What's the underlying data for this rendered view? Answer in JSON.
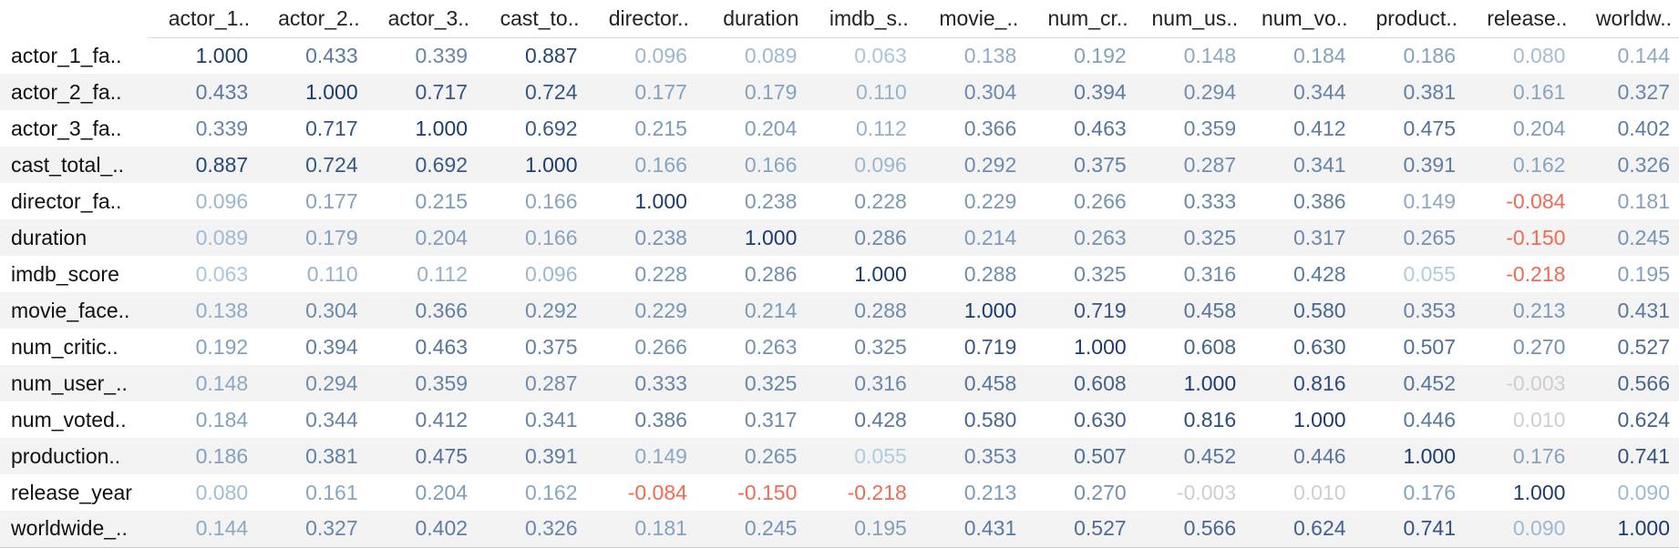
{
  "columns": [
    "actor_1..",
    "actor_2..",
    "actor_3..",
    "cast_to..",
    "director..",
    "duration",
    "imdb_s..",
    "movie_..",
    "num_cr..",
    "num_us..",
    "num_vo..",
    "product..",
    "release..",
    "worldw.."
  ],
  "rows": [
    {
      "label": "actor_1_fa..",
      "cells": [
        "1.000",
        "0.433",
        "0.339",
        "0.887",
        "0.096",
        "0.089",
        "0.063",
        "0.138",
        "0.192",
        "0.148",
        "0.184",
        "0.186",
        "0.080",
        "0.144"
      ]
    },
    {
      "label": "actor_2_fa..",
      "cells": [
        "0.433",
        "1.000",
        "0.717",
        "0.724",
        "0.177",
        "0.179",
        "0.110",
        "0.304",
        "0.394",
        "0.294",
        "0.344",
        "0.381",
        "0.161",
        "0.327"
      ]
    },
    {
      "label": "actor_3_fa..",
      "cells": [
        "0.339",
        "0.717",
        "1.000",
        "0.692",
        "0.215",
        "0.204",
        "0.112",
        "0.366",
        "0.463",
        "0.359",
        "0.412",
        "0.475",
        "0.204",
        "0.402"
      ]
    },
    {
      "label": "cast_total_..",
      "cells": [
        "0.887",
        "0.724",
        "0.692",
        "1.000",
        "0.166",
        "0.166",
        "0.096",
        "0.292",
        "0.375",
        "0.287",
        "0.341",
        "0.391",
        "0.162",
        "0.326"
      ]
    },
    {
      "label": "director_fa..",
      "cells": [
        "0.096",
        "0.177",
        "0.215",
        "0.166",
        "1.000",
        "0.238",
        "0.228",
        "0.229",
        "0.266",
        "0.333",
        "0.386",
        "0.149",
        "-0.084",
        "0.181"
      ]
    },
    {
      "label": "duration",
      "cells": [
        "0.089",
        "0.179",
        "0.204",
        "0.166",
        "0.238",
        "1.000",
        "0.286",
        "0.214",
        "0.263",
        "0.325",
        "0.317",
        "0.265",
        "-0.150",
        "0.245"
      ]
    },
    {
      "label": "imdb_score",
      "cells": [
        "0.063",
        "0.110",
        "0.112",
        "0.096",
        "0.228",
        "0.286",
        "1.000",
        "0.288",
        "0.325",
        "0.316",
        "0.428",
        "0.055",
        "-0.218",
        "0.195"
      ]
    },
    {
      "label": "movie_face..",
      "cells": [
        "0.138",
        "0.304",
        "0.366",
        "0.292",
        "0.229",
        "0.214",
        "0.288",
        "1.000",
        "0.719",
        "0.458",
        "0.580",
        "0.353",
        "0.213",
        "0.431"
      ]
    },
    {
      "label": "num_critic..",
      "cells": [
        "0.192",
        "0.394",
        "0.463",
        "0.375",
        "0.266",
        "0.263",
        "0.325",
        "0.719",
        "1.000",
        "0.608",
        "0.630",
        "0.507",
        "0.270",
        "0.527"
      ]
    },
    {
      "label": "num_user_..",
      "cells": [
        "0.148",
        "0.294",
        "0.359",
        "0.287",
        "0.333",
        "0.325",
        "0.316",
        "0.458",
        "0.608",
        "1.000",
        "0.816",
        "0.452",
        "-0.003",
        "0.566"
      ]
    },
    {
      "label": "num_voted..",
      "cells": [
        "0.184",
        "0.344",
        "0.412",
        "0.341",
        "0.386",
        "0.317",
        "0.428",
        "0.580",
        "0.630",
        "0.816",
        "1.000",
        "0.446",
        "0.010",
        "0.624"
      ]
    },
    {
      "label": "production..",
      "cells": [
        "0.186",
        "0.381",
        "0.475",
        "0.391",
        "0.149",
        "0.265",
        "0.055",
        "0.353",
        "0.507",
        "0.452",
        "0.446",
        "1.000",
        "0.176",
        "0.741"
      ]
    },
    {
      "label": "release_year",
      "cells": [
        "0.080",
        "0.161",
        "0.204",
        "0.162",
        "-0.084",
        "-0.150",
        "-0.218",
        "0.213",
        "0.270",
        "-0.003",
        "0.010",
        "0.176",
        "1.000",
        "0.090"
      ]
    },
    {
      "label": "worldwide_..",
      "cells": [
        "0.144",
        "0.327",
        "0.402",
        "0.326",
        "0.181",
        "0.245",
        "0.195",
        "0.431",
        "0.527",
        "0.566",
        "0.624",
        "0.741",
        "0.090",
        "1.000"
      ]
    }
  ],
  "colors": {
    "positive_high": "#1c3c6e",
    "positive_low": "#b9d4e6",
    "negative": "#f06a55",
    "neutral_near_zero": "#d4cccc"
  }
}
